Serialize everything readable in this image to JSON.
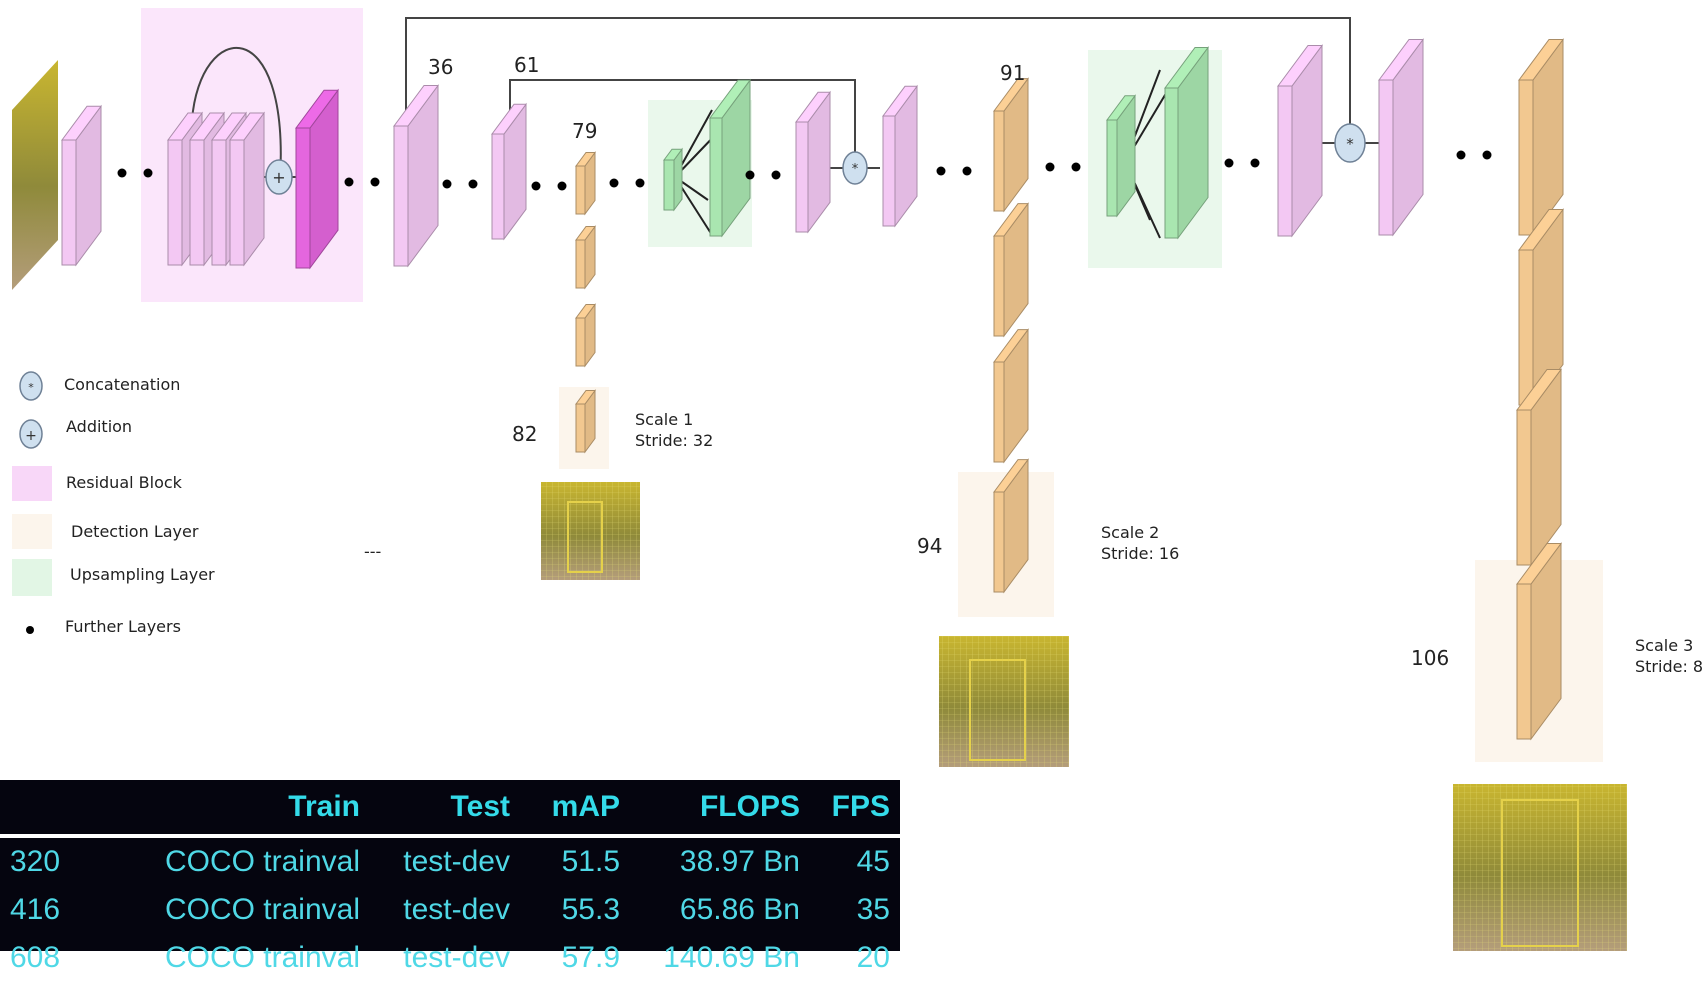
{
  "diagram": {
    "layer_labels": [
      "36",
      "61",
      "79",
      "91",
      "82",
      "94",
      "106"
    ],
    "scales": [
      {
        "name": "Scale 1",
        "stride": "Stride: 32"
      },
      {
        "name": "Scale 2",
        "stride": "Stride: 16"
      },
      {
        "name": "Scale 3",
        "stride": "Stride: 8"
      }
    ],
    "dash_text": "---",
    "colors": {
      "residual_block": "#f3c8f3",
      "residual_block_dark": "#e466de",
      "detection_layer": "#f2c890",
      "upsampling_layer": "#a9e6b0",
      "op_circle": "#cfe0ef"
    }
  },
  "legend": [
    {
      "icon": "concatenation-icon",
      "label": "Concatenation"
    },
    {
      "icon": "addition-icon",
      "label": "Addition"
    },
    {
      "icon": "residual-block-swatch",
      "label": "Residual Block"
    },
    {
      "icon": "detection-layer-swatch",
      "label": "Detection Layer"
    },
    {
      "icon": "upsampling-layer-swatch",
      "label": "Upsampling Layer"
    },
    {
      "icon": "further-layers-dot",
      "label": "Further Layers"
    }
  ],
  "table": {
    "headers": [
      "",
      "Train",
      "Test",
      "mAP",
      "FLOPS",
      "FPS"
    ],
    "rows": [
      [
        "320",
        "COCO trainval",
        "test-dev",
        "51.5",
        "38.97 Bn",
        "45"
      ],
      [
        "416",
        "COCO trainval",
        "test-dev",
        "55.3",
        "65.86 Bn",
        "35"
      ],
      [
        "608",
        "COCO trainval",
        "test-dev",
        "57.9",
        "140.69 Bn",
        "20"
      ]
    ]
  }
}
